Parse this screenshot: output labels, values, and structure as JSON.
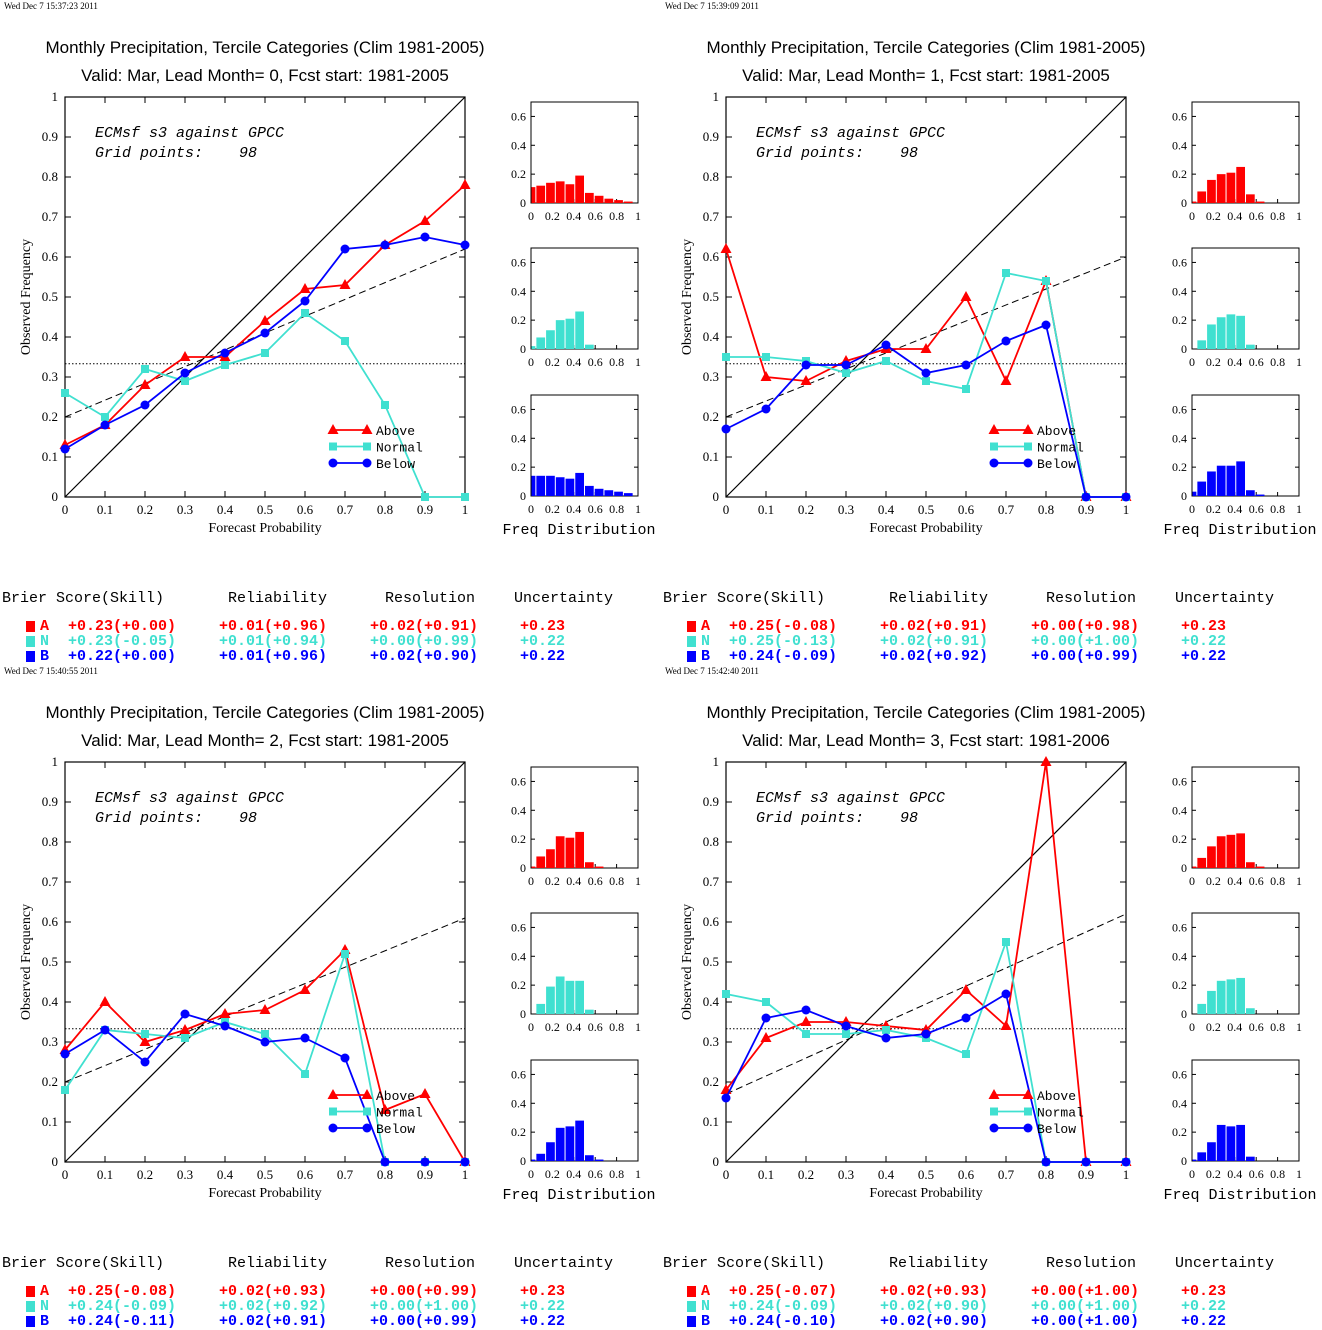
{
  "colors": {
    "above": "#ff0000",
    "normal": "#40e0d0",
    "below": "#0000ff"
  },
  "score_headers": [
    "Brier Score(Skill)",
    "Reliability",
    "Resolution",
    "Uncertainty"
  ],
  "freq_label": "Freq Distribution",
  "panels": [
    {
      "timestamp": "Wed Dec  7 15:37:23 2011",
      "title1": "Monthly Precipitation, Tercile Categories (Clim 1981-2005)",
      "title2": "Valid: Mar, Lead Month= 0, Fcst start: 1981-2005",
      "annot1": "ECMsf s3 against GPCC",
      "annot2": "Grid points:    98",
      "chart_data": {
        "type": "line",
        "xlabel": "Forecast Probability",
        "ylabel": "Observed Frequency",
        "xlim": [
          0,
          1
        ],
        "ylim": [
          0,
          1
        ],
        "climatology": 0.333,
        "skill_line": [
          [
            0,
            0.2
          ],
          [
            1,
            0.62
          ]
        ],
        "x": [
          0,
          0.1,
          0.2,
          0.3,
          0.4,
          0.5,
          0.6,
          0.7,
          0.8,
          0.9,
          1
        ],
        "series": [
          {
            "name": "Above",
            "values": [
              0.13,
              0.18,
              0.28,
              0.35,
              0.35,
              0.44,
              0.52,
              0.53,
              0.63,
              0.69,
              0.78
            ]
          },
          {
            "name": "Normal",
            "values": [
              0.26,
              0.2,
              0.32,
              0.29,
              0.33,
              0.36,
              0.46,
              0.39,
              0.23,
              0,
              0
            ]
          },
          {
            "name": "Below",
            "values": [
              0.12,
              0.18,
              0.23,
              0.31,
              0.36,
              0.41,
              0.49,
              0.62,
              0.63,
              0.65,
              0.63
            ]
          }
        ],
        "freq": {
          "Above": [
            0.11,
            0.12,
            0.14,
            0.15,
            0.13,
            0.19,
            0.07,
            0.05,
            0.03,
            0.02,
            0.01
          ],
          "Normal": [
            0.02,
            0.08,
            0.13,
            0.2,
            0.21,
            0.26,
            0.03,
            0,
            0,
            0,
            0
          ],
          "Below": [
            0.14,
            0.14,
            0.14,
            0.13,
            0.12,
            0.16,
            0.07,
            0.05,
            0.04,
            0.03,
            0.02
          ]
        }
      },
      "scores": [
        {
          "cat": "A",
          "bs": "+0.23(+0.00)",
          "rel": "+0.01(+0.96)",
          "res": "+0.02(+0.91)",
          "unc": "+0.23"
        },
        {
          "cat": "N",
          "bs": "+0.23(-0.05)",
          "rel": "+0.01(+0.94)",
          "res": "+0.00(+0.99)",
          "unc": "+0.22"
        },
        {
          "cat": "B",
          "bs": "+0.22(+0.00)",
          "rel": "+0.01(+0.96)",
          "res": "+0.02(+0.90)",
          "unc": "+0.22"
        }
      ]
    },
    {
      "timestamp": "Wed Dec  7 15:39:09 2011",
      "title1": "Monthly Precipitation, Tercile Categories (Clim 1981-2005)",
      "title2": "Valid: Mar, Lead Month= 1, Fcst start: 1981-2005",
      "annot1": "ECMsf s3 against GPCC",
      "annot2": "Grid points:    98",
      "chart_data": {
        "type": "line",
        "xlabel": "Forecast Probability",
        "ylabel": "Observed Frequency",
        "xlim": [
          0,
          1
        ],
        "ylim": [
          0,
          1
        ],
        "climatology": 0.333,
        "skill_line": [
          [
            0,
            0.2
          ],
          [
            1,
            0.6
          ]
        ],
        "x": [
          0,
          0.1,
          0.2,
          0.3,
          0.4,
          0.5,
          0.6,
          0.7,
          0.8,
          0.9,
          1
        ],
        "series": [
          {
            "name": "Above",
            "values": [
              0.62,
              0.3,
              0.29,
              0.34,
              0.37,
              0.37,
              0.5,
              0.29,
              0.54,
              0,
              0
            ]
          },
          {
            "name": "Normal",
            "values": [
              0.35,
              0.35,
              0.34,
              0.31,
              0.34,
              0.29,
              0.27,
              0.56,
              0.54,
              0,
              0
            ]
          },
          {
            "name": "Below",
            "values": [
              0.17,
              0.22,
              0.33,
              0.33,
              0.38,
              0.31,
              0.33,
              0.39,
              0.43,
              0,
              0
            ]
          }
        ],
        "freq": {
          "Above": [
            0.01,
            0.08,
            0.16,
            0.2,
            0.21,
            0.25,
            0.06,
            0.01,
            0,
            0,
            0
          ],
          "Normal": [
            0,
            0.06,
            0.17,
            0.22,
            0.24,
            0.23,
            0.03,
            0,
            0,
            0,
            0
          ],
          "Below": [
            0.03,
            0.1,
            0.17,
            0.21,
            0.21,
            0.24,
            0.04,
            0.01,
            0,
            0,
            0
          ]
        }
      },
      "scores": [
        {
          "cat": "A",
          "bs": "+0.25(-0.08)",
          "rel": "+0.02(+0.91)",
          "res": "+0.00(+0.98)",
          "unc": "+0.23"
        },
        {
          "cat": "N",
          "bs": "+0.25(-0.13)",
          "rel": "+0.02(+0.91)",
          "res": "+0.00(+1.00)",
          "unc": "+0.22"
        },
        {
          "cat": "B",
          "bs": "+0.24(-0.09)",
          "rel": "+0.02(+0.92)",
          "res": "+0.00(+0.99)",
          "unc": "+0.22"
        }
      ]
    },
    {
      "timestamp": "Wed Dec  7 15:40:55 2011",
      "title1": "Monthly Precipitation, Tercile Categories (Clim 1981-2005)",
      "title2": "Valid: Mar, Lead Month= 2, Fcst start: 1981-2005",
      "annot1": "ECMsf s3 against GPCC",
      "annot2": "Grid points:    98",
      "chart_data": {
        "type": "line",
        "xlabel": "Forecast Probability",
        "ylabel": "Observed Frequency",
        "xlim": [
          0,
          1
        ],
        "ylim": [
          0,
          1
        ],
        "climatology": 0.333,
        "skill_line": [
          [
            0,
            0.2
          ],
          [
            1,
            0.61
          ]
        ],
        "x": [
          0,
          0.1,
          0.2,
          0.3,
          0.4,
          0.5,
          0.6,
          0.7,
          0.8,
          0.9,
          1
        ],
        "series": [
          {
            "name": "Above",
            "values": [
              0.28,
              0.4,
              0.3,
              0.33,
              0.37,
              0.38,
              0.43,
              0.53,
              0.13,
              0.17,
              0
            ]
          },
          {
            "name": "Normal",
            "values": [
              0.18,
              0.33,
              0.32,
              0.31,
              0.35,
              0.32,
              0.22,
              0.52,
              0,
              0,
              0
            ]
          },
          {
            "name": "Below",
            "values": [
              0.27,
              0.33,
              0.25,
              0.37,
              0.34,
              0.3,
              0.31,
              0.26,
              0,
              0,
              0
            ]
          }
        ],
        "freq": {
          "Above": [
            0.01,
            0.08,
            0.13,
            0.22,
            0.21,
            0.25,
            0.04,
            0.01,
            0,
            0,
            0
          ],
          "Normal": [
            0,
            0.07,
            0.19,
            0.26,
            0.23,
            0.23,
            0.03,
            0,
            0,
            0,
            0
          ],
          "Below": [
            0.01,
            0.05,
            0.13,
            0.23,
            0.24,
            0.28,
            0.04,
            0.01,
            0,
            0,
            0
          ]
        }
      },
      "scores": [
        {
          "cat": "A",
          "bs": "+0.25(-0.08)",
          "rel": "+0.02(+0.93)",
          "res": "+0.00(+0.99)",
          "unc": "+0.23"
        },
        {
          "cat": "N",
          "bs": "+0.24(-0.09)",
          "rel": "+0.02(+0.92)",
          "res": "+0.00(+1.00)",
          "unc": "+0.22"
        },
        {
          "cat": "B",
          "bs": "+0.24(-0.11)",
          "rel": "+0.02(+0.91)",
          "res": "+0.00(+0.99)",
          "unc": "+0.22"
        }
      ]
    },
    {
      "timestamp": "Wed Dec  7 15:42:40 2011",
      "title1": "Monthly Precipitation, Tercile Categories (Clim 1981-2005)",
      "title2": "Valid: Mar, Lead Month= 3, Fcst start: 1981-2006",
      "annot1": "ECMsf s3 against GPCC",
      "annot2": "Grid points:    98",
      "chart_data": {
        "type": "line",
        "xlabel": "Forecast Probability",
        "ylabel": "Observed Frequency",
        "xlim": [
          0,
          1
        ],
        "ylim": [
          0,
          1
        ],
        "climatology": 0.333,
        "skill_line": [
          [
            0,
            0.17
          ],
          [
            1,
            0.62
          ]
        ],
        "x": [
          0,
          0.1,
          0.2,
          0.3,
          0.4,
          0.5,
          0.6,
          0.7,
          0.8,
          0.9,
          1
        ],
        "series": [
          {
            "name": "Above",
            "values": [
              0.18,
              0.31,
              0.35,
              0.35,
              0.34,
              0.33,
              0.43,
              0.34,
              1,
              0,
              0
            ]
          },
          {
            "name": "Normal",
            "values": [
              0.42,
              0.4,
              0.32,
              0.32,
              0.33,
              0.31,
              0.27,
              0.55,
              0,
              0,
              0
            ]
          },
          {
            "name": "Below",
            "values": [
              0.16,
              0.36,
              0.38,
              0.34,
              0.31,
              0.32,
              0.36,
              0.42,
              0,
              0,
              0
            ]
          }
        ],
        "freq": {
          "Above": [
            0.01,
            0.07,
            0.15,
            0.22,
            0.23,
            0.24,
            0.04,
            0.01,
            0,
            0,
            0
          ],
          "Normal": [
            0,
            0.07,
            0.16,
            0.23,
            0.24,
            0.25,
            0.04,
            0,
            0,
            0,
            0
          ],
          "Below": [
            0.01,
            0.06,
            0.13,
            0.25,
            0.24,
            0.25,
            0.03,
            0,
            0,
            0,
            0
          ]
        }
      },
      "scores": [
        {
          "cat": "A",
          "bs": "+0.25(-0.07)",
          "rel": "+0.02(+0.93)",
          "res": "+0.00(+1.00)",
          "unc": "+0.23"
        },
        {
          "cat": "N",
          "bs": "+0.24(-0.09)",
          "rel": "+0.02(+0.90)",
          "res": "+0.00(+1.00)",
          "unc": "+0.22"
        },
        {
          "cat": "B",
          "bs": "+0.24(-0.10)",
          "rel": "+0.02(+0.90)",
          "res": "+0.00(+1.00)",
          "unc": "+0.22"
        }
      ]
    }
  ]
}
